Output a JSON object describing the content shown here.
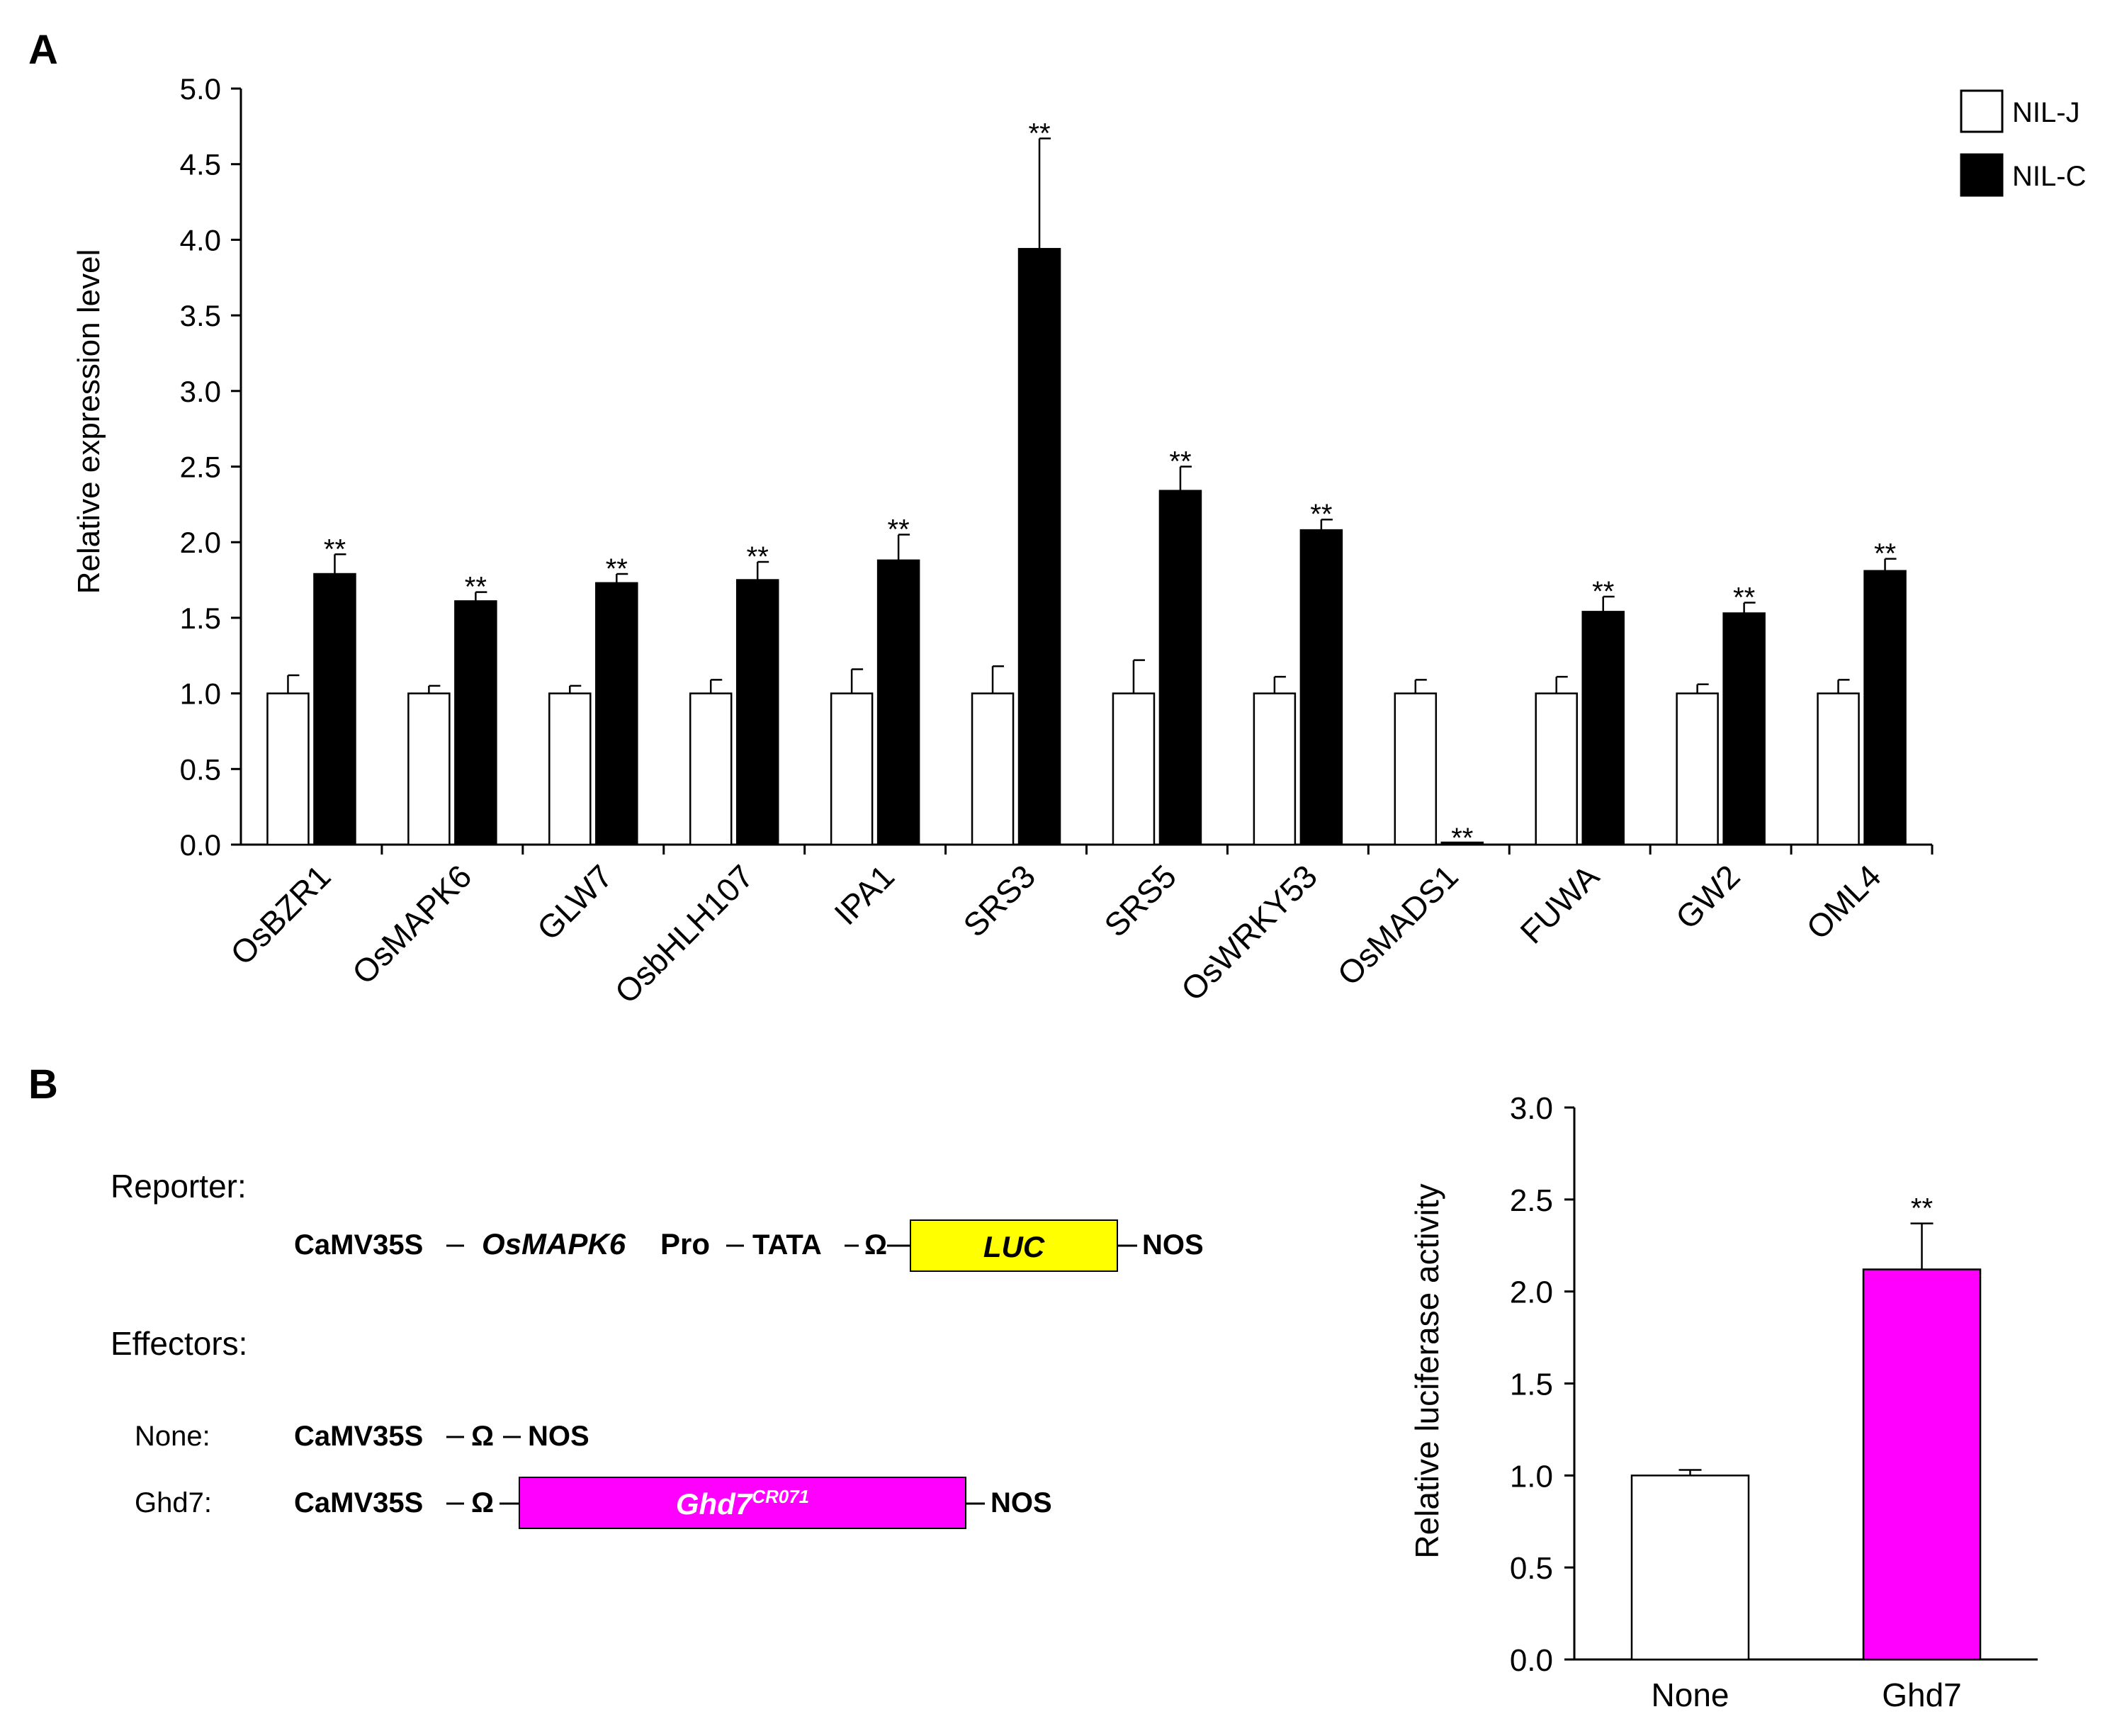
{
  "panel_a": {
    "label": "A"
  },
  "panel_b": {
    "label": "B",
    "reporter_label": "Reporter:",
    "effectors_label": "Effectors:",
    "reporter": {
      "promoter": "CaMV35S",
      "gene": "OsMAPK6",
      "gene_suffix": "Pro",
      "tata": "TATA",
      "omega": "Ω",
      "box_label": "LUC",
      "terminator": "NOS"
    },
    "none_row": {
      "name": "None:",
      "promoter": "CaMV35S",
      "omega": "Ω",
      "terminator": "NOS"
    },
    "ghd7_row": {
      "name": "Ghd7:",
      "promoter": "CaMV35S",
      "omega": "Ω",
      "box_label": "Ghd7",
      "box_superscript": "CR071",
      "terminator": "NOS"
    }
  },
  "colors": {
    "nilj": "#ffffff",
    "nilc": "#000000",
    "none_bar": "#ffffff",
    "ghd7_bar": "#ff00ff",
    "luc_box": "#ffff00",
    "ghd7_box": "#ff00ff"
  },
  "chart_data": [
    {
      "type": "bar",
      "title": "",
      "xlabel": "",
      "ylabel": "Relative expression level",
      "ylim": [
        0,
        5.0
      ],
      "yticks": [
        "0.0",
        "0.5",
        "1.0",
        "1.5",
        "2.0",
        "2.5",
        "3.0",
        "3.5",
        "4.0",
        "4.5",
        "5.0"
      ],
      "legend_position": "top-right",
      "categories": [
        "OsBZR1",
        "OsMAPK6",
        "GLW7",
        "OsbHLH107",
        "IPA1",
        "SRS3",
        "SRS5",
        "OsWRKY53",
        "OsMADS1",
        "FUWA",
        "GW2",
        "OML4"
      ],
      "series": [
        {
          "name": "NIL-J",
          "values": [
            1.0,
            1.0,
            1.0,
            1.0,
            1.0,
            1.0,
            1.0,
            1.0,
            1.0,
            1.0,
            1.0,
            1.0
          ],
          "errors": [
            0.12,
            0.05,
            0.05,
            0.09,
            0.16,
            0.18,
            0.22,
            0.11,
            0.09,
            0.11,
            0.06,
            0.09
          ]
        },
        {
          "name": "NIL-C",
          "values": [
            1.79,
            1.61,
            1.73,
            1.75,
            1.88,
            3.94,
            2.34,
            2.08,
            0.01,
            1.54,
            1.53,
            1.81
          ],
          "errors": [
            0.13,
            0.06,
            0.06,
            0.12,
            0.17,
            0.73,
            0.16,
            0.07,
            0.0,
            0.1,
            0.07,
            0.08
          ]
        }
      ],
      "annotations": [
        "**",
        "**",
        "**",
        "**",
        "**",
        "**",
        "**",
        "**",
        "**",
        "**",
        "**",
        "**"
      ]
    },
    {
      "type": "bar",
      "title": "",
      "xlabel": "",
      "ylabel": "Relative luciferase activity",
      "ylim": [
        0,
        3.0
      ],
      "yticks": [
        "0.0",
        "0.5",
        "1.0",
        "1.5",
        "2.0",
        "2.5",
        "3.0"
      ],
      "categories": [
        "None",
        "Ghd7"
      ],
      "values": [
        1.0,
        2.12
      ],
      "errors": [
        0.03,
        0.25
      ],
      "annotations": [
        "",
        "**"
      ]
    }
  ]
}
